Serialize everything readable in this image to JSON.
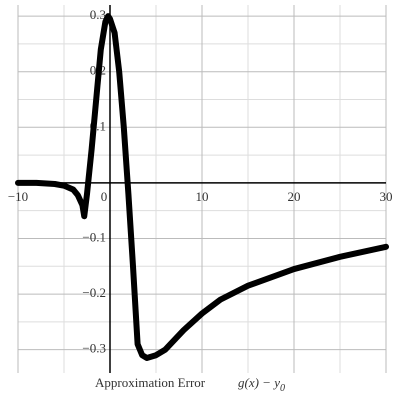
{
  "chart_data": {
    "type": "line",
    "xlabel": "Approximation Error",
    "formula": "g(x) − y",
    "formula_subscript": "0",
    "x": [
      -10,
      -8,
      -6,
      -5,
      -4,
      -3.5,
      -3,
      -2.8,
      -2.5,
      -2,
      -1.5,
      -1,
      -0.5,
      -0.2,
      0,
      0.5,
      1,
      1.5,
      2,
      2.5,
      3,
      3.5,
      4,
      5,
      6,
      8,
      10,
      12,
      15,
      20,
      25,
      30
    ],
    "series": [
      {
        "color": "#000000",
        "values": [
          0,
          0,
          -0.002,
          -0.005,
          -0.012,
          -0.022,
          -0.04,
          -0.06,
          -0.02,
          0.06,
          0.15,
          0.24,
          0.29,
          0.3,
          0.295,
          0.27,
          0.2,
          0.1,
          -0.02,
          -0.15,
          -0.29,
          -0.31,
          -0.315,
          -0.31,
          -0.3,
          -0.265,
          -0.235,
          -0.21,
          -0.185,
          -0.155,
          -0.133,
          -0.115
        ]
      }
    ],
    "xlim": [
      -10,
      30
    ],
    "ylim": [
      -0.342,
      0.32
    ],
    "xticks": [
      {
        "value": -10,
        "label": "−10"
      },
      0,
      10,
      20,
      30
    ],
    "yticks": [
      {
        "value": -0.3,
        "label": "−0.3"
      },
      {
        "value": -0.2,
        "label": "−0.2"
      },
      {
        "value": -0.1,
        "label": "−0.1"
      },
      0.1,
      0.2,
      0.3
    ],
    "xminor": [
      -5,
      5,
      15,
      25
    ],
    "yminor": [
      -0.25,
      -0.15,
      -0.05,
      0,
      0.05,
      0.15,
      0.25
    ],
    "grid": true
  }
}
